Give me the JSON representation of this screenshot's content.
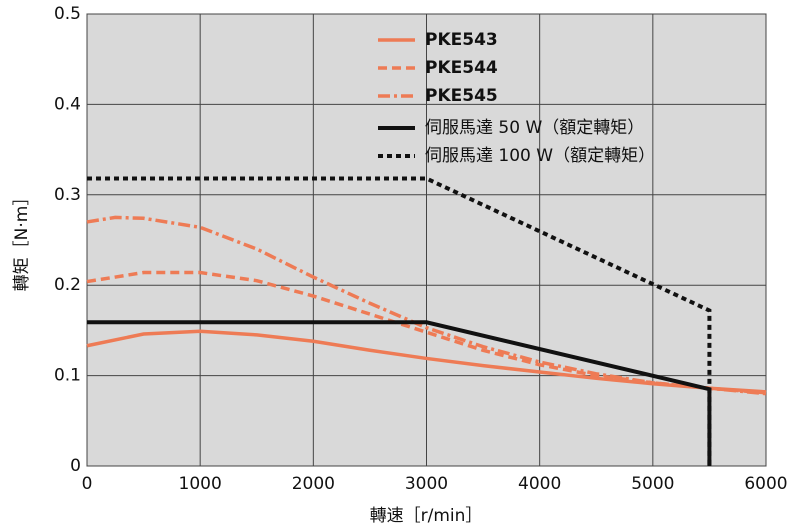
{
  "chart_data": {
    "type": "line",
    "x_label": "轉速［r/min］",
    "y_label": "轉矩［N·m］",
    "xlim": [
      0,
      6000
    ],
    "xticks": [
      0,
      1000,
      2000,
      3000,
      4000,
      5000,
      6000
    ],
    "ylim": [
      0,
      0.5
    ],
    "yticks": [
      0,
      0.1,
      0.2,
      0.3,
      0.4,
      0.5
    ],
    "grid": true,
    "legend": "upper right",
    "series": [
      {
        "name": "PKE543",
        "color": "#ee7b55",
        "style": "solid",
        "x": [
          0,
          500,
          1000,
          1500,
          2000,
          2500,
          3000,
          3500,
          4000,
          4500,
          5000,
          5500,
          6000
        ],
        "values": [
          0.133,
          0.146,
          0.149,
          0.145,
          0.138,
          0.128,
          0.119,
          0.111,
          0.104,
          0.097,
          0.091,
          0.086,
          0.082
        ]
      },
      {
        "name": "PKE544",
        "color": "#ee7b55",
        "style": "dashed",
        "x": [
          0,
          500,
          1000,
          1500,
          2000,
          2500,
          3000,
          3500,
          4000,
          4500,
          5000,
          5500,
          6000
        ],
        "values": [
          0.204,
          0.214,
          0.214,
          0.205,
          0.188,
          0.168,
          0.148,
          0.128,
          0.112,
          0.1,
          0.092,
          0.086,
          0.081
        ]
      },
      {
        "name": "PKE545",
        "color": "#ee7b55",
        "style": "dashdot",
        "x": [
          0,
          250,
          500,
          1000,
          1500,
          2000,
          2500,
          3000,
          3500,
          4000,
          4500,
          5000,
          5500,
          6000
        ],
        "values": [
          0.27,
          0.275,
          0.274,
          0.264,
          0.24,
          0.209,
          0.18,
          0.153,
          0.132,
          0.115,
          0.102,
          0.092,
          0.086,
          0.08
        ]
      },
      {
        "name": "伺服馬達 50 W（額定轉矩）",
        "color": "#111111",
        "style": "solid",
        "x": [
          0,
          3000,
          5500,
          5500
        ],
        "values": [
          0.159,
          0.159,
          0.085,
          0
        ]
      },
      {
        "name": "伺服馬達 100 W（額定轉矩）",
        "color": "#111111",
        "style": "dotted",
        "x": [
          0,
          3000,
          5500,
          5500
        ],
        "values": [
          0.318,
          0.318,
          0.172,
          0
        ]
      }
    ]
  }
}
